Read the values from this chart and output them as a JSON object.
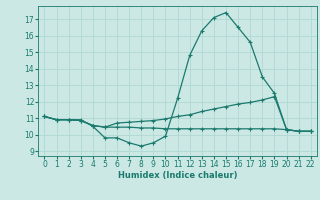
{
  "xlabel": "Humidex (Indice chaleur)",
  "xlim": [
    -0.5,
    22.5
  ],
  "ylim": [
    8.7,
    17.8
  ],
  "yticks": [
    9,
    10,
    11,
    12,
    13,
    14,
    15,
    16,
    17
  ],
  "xticks": [
    0,
    1,
    2,
    3,
    4,
    5,
    6,
    7,
    8,
    9,
    10,
    11,
    12,
    13,
    14,
    15,
    16,
    17,
    18,
    19,
    20,
    21,
    22
  ],
  "bg_color": "#cce8e4",
  "line_color": "#1a7a6e",
  "grid_color": "#b0d8d4",
  "line1_x": [
    0,
    1,
    2,
    3,
    4,
    5,
    6,
    7,
    8,
    9,
    10,
    11,
    12,
    13,
    14,
    15,
    16,
    17,
    18,
    19,
    20,
    21,
    22
  ],
  "line1_y": [
    11.1,
    10.9,
    10.9,
    10.9,
    10.5,
    9.8,
    9.8,
    9.5,
    9.3,
    9.5,
    9.9,
    12.2,
    14.8,
    16.3,
    17.1,
    17.4,
    16.5,
    15.6,
    13.5,
    12.5,
    10.3,
    10.2,
    10.2
  ],
  "line2_x": [
    0,
    1,
    2,
    3,
    4,
    5,
    6,
    7,
    8,
    9,
    10,
    11,
    12,
    13,
    14,
    15,
    16,
    17,
    18,
    19,
    20,
    21,
    22
  ],
  "line2_y": [
    11.1,
    10.9,
    10.9,
    10.85,
    10.55,
    10.45,
    10.7,
    10.75,
    10.8,
    10.85,
    10.95,
    11.1,
    11.2,
    11.4,
    11.55,
    11.7,
    11.85,
    11.95,
    12.1,
    12.3,
    10.3,
    10.2,
    10.2
  ],
  "line3_x": [
    0,
    1,
    2,
    3,
    4,
    5,
    6,
    7,
    8,
    9,
    10,
    11,
    12,
    13,
    14,
    15,
    16,
    17,
    18,
    19,
    20,
    21,
    22
  ],
  "line3_y": [
    11.1,
    10.9,
    10.9,
    10.85,
    10.55,
    10.45,
    10.45,
    10.45,
    10.4,
    10.4,
    10.35,
    10.35,
    10.35,
    10.35,
    10.35,
    10.35,
    10.35,
    10.35,
    10.35,
    10.35,
    10.3,
    10.2,
    10.2
  ],
  "figsize": [
    3.2,
    2.0
  ],
  "dpi": 100
}
